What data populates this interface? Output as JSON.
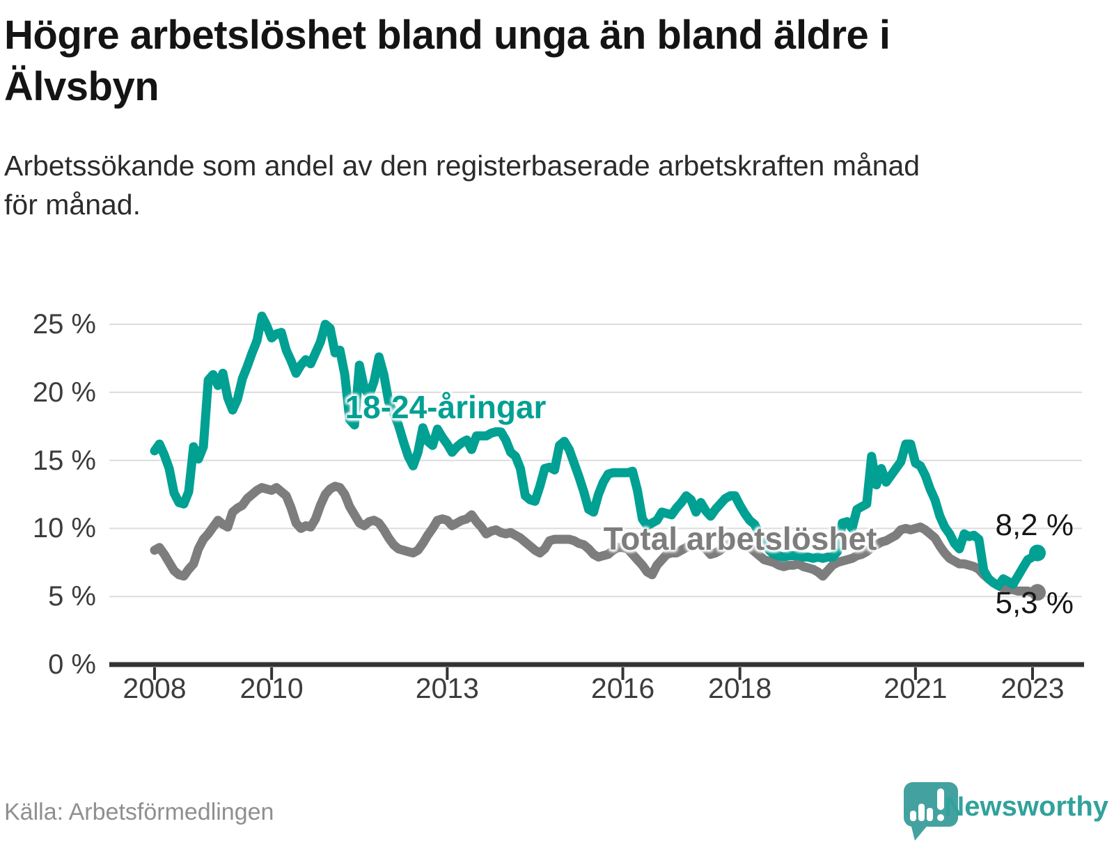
{
  "title": "Högre arbetslöshet bland unga än bland äldre i Älvsbyn",
  "subtitle": "Arbetssökande som andel av den registerbaserade arbetskraften månad för månad.",
  "display": {
    "title_lines": [
      "Högre arbetslöshet bland unga än bland äldre i",
      "Älvsbyn"
    ],
    "subtitle_lines": [
      "Arbetssökande som andel av den registerbaserade arbetskraften månad",
      "för månad."
    ]
  },
  "source": "Källa: Arbetsförmedlingen",
  "brand": {
    "name": "Newsworthy"
  },
  "colors": {
    "youth": "#00a093",
    "total": "#7d7d7d",
    "grid": "#dcdcdc",
    "axis": "#333333",
    "end_label": "#161616",
    "logo": "#43a29f"
  },
  "chart_data": {
    "type": "line",
    "title": "Högre arbetslöshet bland unga än bland äldre i Älvsbyn",
    "xlabel": "",
    "ylabel": "Arbetssökande som andel av den registerbaserade arbetskraften",
    "grid": true,
    "legend_position": "inline-labels",
    "ylim": [
      0,
      26.5
    ],
    "x_start": {
      "year": 2008,
      "month": 1
    },
    "x_end": {
      "year": 2023,
      "month": 2
    },
    "points_per_year": 12,
    "y_ticks": [
      {
        "value": 0,
        "label": "0 %"
      },
      {
        "value": 5,
        "label": "5 %"
      },
      {
        "value": 10,
        "label": "10 %"
      },
      {
        "value": 15,
        "label": "15 %"
      },
      {
        "value": 20,
        "label": "20 %"
      },
      {
        "value": 25,
        "label": "25 %"
      }
    ],
    "x_ticks": [
      {
        "year": 2008,
        "label": "2008"
      },
      {
        "year": 2010,
        "label": "2010"
      },
      {
        "year": 2013,
        "label": "2013"
      },
      {
        "year": 2016,
        "label": "2016"
      },
      {
        "year": 2018,
        "label": "2018"
      },
      {
        "year": 2021,
        "label": "2021"
      },
      {
        "year": 2023,
        "label": "2023"
      }
    ],
    "series": [
      {
        "name": "18-24-åringar",
        "color": "#00a093",
        "end_label": "8,2 %",
        "end_value": 8.2,
        "values": [
          15.7,
          16.2,
          15.4,
          14.4,
          12.6,
          11.9,
          11.8,
          12.7,
          16.0,
          15.1,
          16.0,
          20.9,
          21.3,
          20.5,
          21.4,
          19.6,
          18.7,
          19.5,
          21.0,
          21.9,
          22.9,
          23.8,
          25.6,
          24.9,
          24.0,
          24.3,
          24.4,
          23.1,
          22.3,
          21.4,
          22.0,
          22.4,
          22.1,
          22.9,
          23.7,
          25.0,
          24.7,
          22.9,
          23.1,
          21.3,
          18.0,
          17.6,
          22.0,
          20.3,
          19.8,
          20.8,
          22.6,
          21.3,
          19.3,
          18.5,
          17.6,
          16.4,
          15.3,
          14.6,
          15.6,
          17.4,
          16.4,
          16.1,
          17.3,
          16.7,
          16.2,
          15.6,
          16.0,
          16.3,
          16.5,
          15.8,
          16.8,
          16.8,
          16.8,
          17.0,
          17.1,
          17.1,
          16.5,
          15.6,
          15.3,
          14.4,
          12.4,
          12.1,
          12.0,
          13.1,
          14.4,
          14.5,
          14.3,
          16.1,
          16.4,
          15.8,
          14.8,
          13.8,
          12.7,
          11.4,
          11.2,
          12.5,
          13.4,
          14.0,
          14.1,
          14.1,
          14.1,
          14.1,
          14.2,
          12.8,
          10.7,
          10.2,
          10.4,
          10.6,
          11.2,
          11.1,
          11.0,
          11.5,
          11.9,
          12.4,
          12.1,
          11.2,
          11.9,
          11.3,
          10.9,
          11.4,
          11.8,
          12.2,
          12.4,
          12.4,
          11.7,
          11.1,
          10.6,
          10.3,
          9.6,
          9.0,
          8.4,
          8.1,
          8.0,
          7.9,
          8.0,
          8.0,
          8.0,
          7.9,
          7.9,
          7.8,
          7.9,
          7.8,
          7.9,
          7.9,
          8.3,
          10.4,
          10.5,
          10.0,
          11.4,
          11.6,
          11.8,
          15.3,
          13.2,
          14.4,
          13.4,
          13.9,
          14.4,
          14.9,
          16.2,
          16.2,
          14.8,
          14.6,
          13.9,
          12.9,
          12.1,
          10.9,
          10.1,
          9.6,
          8.9,
          8.5,
          9.6,
          9.4,
          9.5,
          9.2,
          6.9,
          6.3,
          6.0,
          5.8,
          6.3,
          6.1,
          5.9,
          6.5,
          7.1,
          7.7,
          7.9,
          8.2
        ]
      },
      {
        "name": "Total arbetslöshet",
        "color": "#7d7d7d",
        "end_label": "5,3 %",
        "end_value": 5.3,
        "values": [
          8.4,
          8.6,
          8.1,
          7.5,
          6.9,
          6.6,
          6.5,
          7.0,
          7.4,
          8.5,
          9.2,
          9.6,
          10.1,
          10.6,
          10.3,
          10.1,
          11.2,
          11.5,
          11.7,
          12.2,
          12.5,
          12.8,
          13.0,
          12.9,
          12.8,
          13.0,
          12.7,
          12.4,
          11.5,
          10.4,
          10.0,
          10.2,
          10.1,
          10.7,
          11.7,
          12.5,
          12.9,
          13.1,
          13.0,
          12.5,
          11.6,
          11.0,
          10.4,
          10.2,
          10.5,
          10.6,
          10.4,
          9.9,
          9.3,
          8.8,
          8.5,
          8.4,
          8.3,
          8.2,
          8.4,
          8.9,
          9.5,
          10.0,
          10.6,
          10.7,
          10.6,
          10.2,
          10.4,
          10.6,
          10.7,
          11.0,
          10.5,
          10.1,
          9.6,
          9.8,
          9.9,
          9.7,
          9.6,
          9.7,
          9.5,
          9.3,
          9.0,
          8.7,
          8.4,
          8.2,
          8.5,
          9.1,
          9.2,
          9.2,
          9.2,
          9.2,
          9.1,
          8.9,
          8.8,
          8.5,
          8.1,
          7.9,
          8.0,
          8.1,
          8.4,
          8.6,
          8.6,
          8.5,
          8.1,
          7.7,
          7.3,
          6.8,
          6.6,
          7.3,
          7.7,
          8.1,
          8.2,
          8.2,
          8.4,
          8.6,
          8.7,
          8.8,
          8.7,
          8.5,
          8.1,
          8.2,
          8.4,
          8.7,
          8.9,
          9.1,
          9.2,
          9.0,
          8.6,
          8.3,
          8.0,
          7.7,
          7.6,
          7.5,
          7.3,
          7.2,
          7.3,
          7.3,
          7.4,
          7.2,
          7.1,
          7.0,
          6.8,
          6.5,
          6.9,
          7.3,
          7.5,
          7.6,
          7.7,
          7.8,
          8.0,
          8.1,
          8.3,
          8.6,
          8.8,
          9.0,
          9.1,
          9.3,
          9.5,
          9.9,
          10.0,
          9.9,
          10.0,
          10.1,
          9.9,
          9.6,
          9.3,
          8.7,
          8.2,
          7.8,
          7.6,
          7.4,
          7.4,
          7.3,
          7.2,
          7.0,
          6.6,
          6.3,
          6.0,
          5.8,
          5.6,
          5.5,
          5.5,
          5.4,
          5.4,
          5.4,
          5.3,
          5.3
        ]
      }
    ]
  }
}
